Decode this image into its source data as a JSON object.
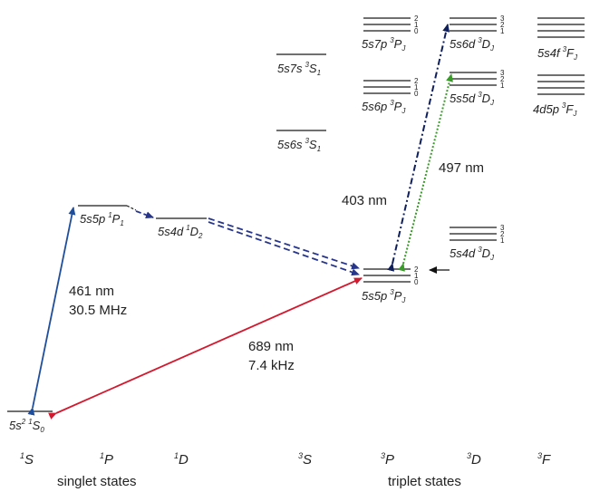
{
  "levels": {
    "ground": {
      "pre": "5s",
      "sup_pre": "2",
      "sup": "1",
      "L": "S",
      "sub": "0"
    },
    "p1": {
      "config": "5s5p",
      "sup": "1",
      "L": "P",
      "sub": "1"
    },
    "d2": {
      "config": "5s4d",
      "sup": "1",
      "L": "D",
      "sub": "2"
    },
    "s1_7s": {
      "config": "5s7s",
      "sup": "3",
      "L": "S",
      "sub": "1"
    },
    "s1_6s": {
      "config": "5s6s",
      "sup": "3",
      "L": "S",
      "sub": "1"
    },
    "p7": {
      "config": "5s7p",
      "sup": "3",
      "L": "P",
      "sub": "J",
      "j": [
        "2",
        "1",
        "0"
      ]
    },
    "p6": {
      "config": "5s6p",
      "sup": "3",
      "L": "P",
      "sub": "J",
      "j": [
        "2",
        "1",
        "0"
      ]
    },
    "p5": {
      "config": "5s5p",
      "sup": "3",
      "L": "P",
      "sub": "J",
      "j": [
        "2",
        "1",
        "0"
      ]
    },
    "d6": {
      "config": "5s6d",
      "sup": "3",
      "L": "D",
      "sub": "J",
      "j": [
        "3",
        "2",
        "1"
      ]
    },
    "d5": {
      "config": "5s5d",
      "sup": "3",
      "L": "D",
      "sub": "J",
      "j": [
        "3",
        "2",
        "1"
      ]
    },
    "d4": {
      "config": "5s4d",
      "sup": "3",
      "L": "D",
      "sub": "J",
      "j": [
        "3",
        "2",
        "1"
      ]
    },
    "f4": {
      "config": "5s4f",
      "sup": "3",
      "L": "F",
      "sub": "J"
    },
    "f4d5p": {
      "config": "4d5p",
      "sup": "3",
      "L": "F",
      "sub": "J"
    }
  },
  "transitions": {
    "t461": {
      "wavelength": "461 nm",
      "width": "30.5 MHz",
      "color": "#1f4e9c"
    },
    "t689": {
      "wavelength": "689 nm",
      "width": "7.4 kHz",
      "color": "#d4182e"
    },
    "t403": {
      "wavelength": "403 nm",
      "color": "#0f1f5c"
    },
    "t497": {
      "wavelength": "497 nm",
      "color": "#3a9b2a"
    },
    "decay_color": "#27368a"
  },
  "columns": [
    {
      "sup": "1",
      "L": "S"
    },
    {
      "sup": "1",
      "L": "P"
    },
    {
      "sup": "1",
      "L": "D"
    },
    {
      "sup": "3",
      "L": "S"
    },
    {
      "sup": "3",
      "L": "P"
    },
    {
      "sup": "3",
      "L": "D"
    },
    {
      "sup": "3",
      "L": "F"
    }
  ],
  "groups": {
    "singlet": "singlet states",
    "triplet": "triplet states"
  }
}
